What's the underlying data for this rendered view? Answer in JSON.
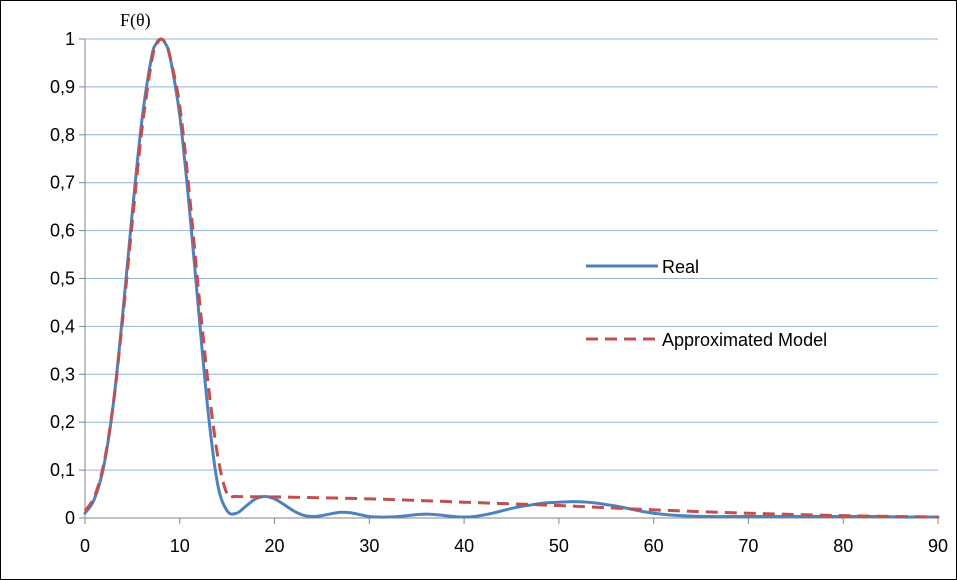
{
  "chart_data": {
    "type": "line",
    "title": "",
    "ylabel": "F(θ)",
    "xlabel": "",
    "xlim": [
      0,
      90
    ],
    "ylim": [
      0,
      1
    ],
    "x_ticks": [
      0,
      10,
      20,
      30,
      40,
      50,
      60,
      70,
      80,
      90
    ],
    "y_ticks": [
      "0",
      "0,1",
      "0,2",
      "0,3",
      "0,4",
      "0,5",
      "0,6",
      "0,7",
      "0,8",
      "0,9",
      "1"
    ],
    "grid": "horizontal",
    "legend": "right",
    "series": [
      {
        "name": "Real",
        "style": "solid",
        "color": "#4F81BD",
        "x": [
          0,
          1,
          2,
          3,
          4,
          5,
          6,
          7,
          7.5,
          8,
          8.5,
          9,
          10,
          11,
          12,
          13,
          14,
          15,
          16,
          17,
          18,
          19,
          20,
          21,
          22,
          23,
          24,
          25,
          26,
          27,
          28,
          29,
          30,
          31,
          32,
          33,
          34,
          35,
          36,
          37,
          38,
          39,
          40,
          41,
          42,
          43,
          44,
          45,
          46,
          47,
          48,
          49,
          50,
          51,
          52,
          53,
          54,
          55,
          56,
          57,
          58,
          59,
          60,
          62,
          64,
          66,
          68,
          70,
          72,
          74,
          76,
          78,
          80,
          82,
          84,
          86,
          88,
          90
        ],
        "y": [
          0.01,
          0.04,
          0.11,
          0.24,
          0.43,
          0.64,
          0.83,
          0.96,
          0.99,
          1.0,
          0.99,
          0.96,
          0.84,
          0.65,
          0.43,
          0.22,
          0.07,
          0.015,
          0.01,
          0.025,
          0.04,
          0.045,
          0.04,
          0.028,
          0.015,
          0.006,
          0.003,
          0.005,
          0.009,
          0.012,
          0.011,
          0.007,
          0.003,
          0.002,
          0.002,
          0.003,
          0.005,
          0.007,
          0.008,
          0.007,
          0.005,
          0.003,
          0.002,
          0.003,
          0.006,
          0.01,
          0.015,
          0.02,
          0.024,
          0.027,
          0.03,
          0.032,
          0.033,
          0.034,
          0.034,
          0.033,
          0.031,
          0.028,
          0.025,
          0.021,
          0.017,
          0.013,
          0.01,
          0.006,
          0.004,
          0.003,
          0.003,
          0.003,
          0.003,
          0.003,
          0.003,
          0.003,
          0.003,
          0.003,
          0.003,
          0.002,
          0.002,
          0.002
        ]
      },
      {
        "name": "Approximated Model",
        "style": "dashed",
        "color": "#C0504D",
        "x": [
          0,
          1,
          2,
          3,
          4,
          5,
          6,
          7,
          7.5,
          8,
          8.5,
          9,
          10,
          11,
          12,
          13,
          14,
          15,
          16,
          20,
          30,
          40,
          50,
          60,
          70,
          80,
          90
        ],
        "y": [
          0.015,
          0.045,
          0.115,
          0.24,
          0.42,
          0.62,
          0.81,
          0.95,
          0.985,
          1.0,
          0.99,
          0.96,
          0.86,
          0.68,
          0.47,
          0.28,
          0.13,
          0.05,
          0.045,
          0.044,
          0.04,
          0.033,
          0.026,
          0.017,
          0.01,
          0.005,
          0.002
        ]
      }
    ]
  }
}
